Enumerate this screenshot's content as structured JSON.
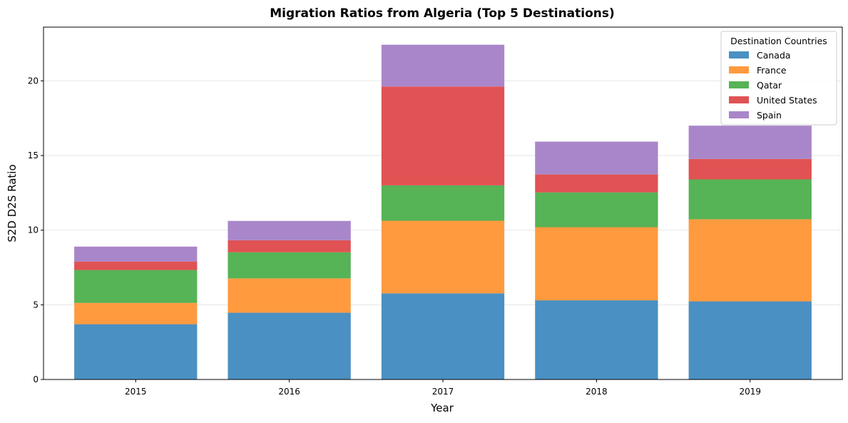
{
  "chart_data": {
    "type": "bar",
    "stacked": true,
    "title": "Migration Ratios from Algeria (Top 5 Destinations)",
    "xlabel": "Year",
    "ylabel": "S2D D2S Ratio",
    "categories": [
      "2015",
      "2016",
      "2017",
      "2018",
      "2019"
    ],
    "ylim": [
      0,
      23.6
    ],
    "yticks": [
      0,
      5,
      10,
      15,
      20
    ],
    "grid": "y",
    "legend": {
      "title": "Destination Countries",
      "position": "top-right"
    },
    "series": [
      {
        "name": "Canada",
        "color": "#4a90c2",
        "values": [
          3.7,
          4.47,
          5.77,
          5.3,
          5.23
        ]
      },
      {
        "name": "France",
        "color": "#ff9a3f",
        "values": [
          1.43,
          2.3,
          4.86,
          4.9,
          5.5
        ]
      },
      {
        "name": "Qatar",
        "color": "#56b356",
        "values": [
          2.2,
          1.75,
          2.37,
          2.33,
          2.67
        ]
      },
      {
        "name": "United States",
        "color": "#e05253",
        "values": [
          0.57,
          0.8,
          6.62,
          1.2,
          1.37
        ]
      },
      {
        "name": "Spain",
        "color": "#a986c9",
        "values": [
          1.0,
          1.3,
          2.8,
          2.2,
          2.23
        ]
      }
    ]
  }
}
